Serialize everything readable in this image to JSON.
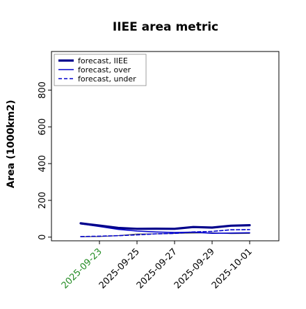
{
  "chart_data": {
    "type": "line",
    "title": "IIEE area metric",
    "xlabel": "",
    "ylabel": "Area (1000km2)",
    "x": [
      "2025-09-22",
      "2025-09-23",
      "2025-09-24",
      "2025-09-25",
      "2025-09-26",
      "2025-09-27",
      "2025-09-28",
      "2025-09-29",
      "2025-09-30",
      "2025-10-01"
    ],
    "xticks": [
      "2025-09-23",
      "2025-09-25",
      "2025-09-27",
      "2025-09-29",
      "2025-10-01"
    ],
    "xtick_colors": [
      "#228B22",
      "#000000",
      "#000000",
      "#000000",
      "#000000"
    ],
    "ylim": [
      -20,
      1010
    ],
    "yticks": [
      0,
      200,
      400,
      600,
      800
    ],
    "legend_position": "top-left",
    "grid": false,
    "series": [
      {
        "name": "forecast, IIEE",
        "style": "solid-thick",
        "color": "#00008B",
        "values": [
          75,
          63,
          50,
          45,
          46,
          45,
          55,
          52,
          62,
          65
        ]
      },
      {
        "name": "forecast, over",
        "style": "solid",
        "color": "#0000CD",
        "values": [
          72,
          58,
          42,
          33,
          28,
          25,
          27,
          21,
          22,
          24
        ]
      },
      {
        "name": "forecast, under",
        "style": "dashed",
        "color": "#0000CD",
        "values": [
          3,
          5,
          8,
          12,
          18,
          20,
          28,
          31,
          40,
          41
        ]
      },
      {
        "name": "",
        "style": "solid-thin",
        "color": "#555555",
        "values": [
          2,
          3,
          8,
          17,
          18,
          20,
          22,
          24,
          19,
          20
        ]
      }
    ]
  }
}
